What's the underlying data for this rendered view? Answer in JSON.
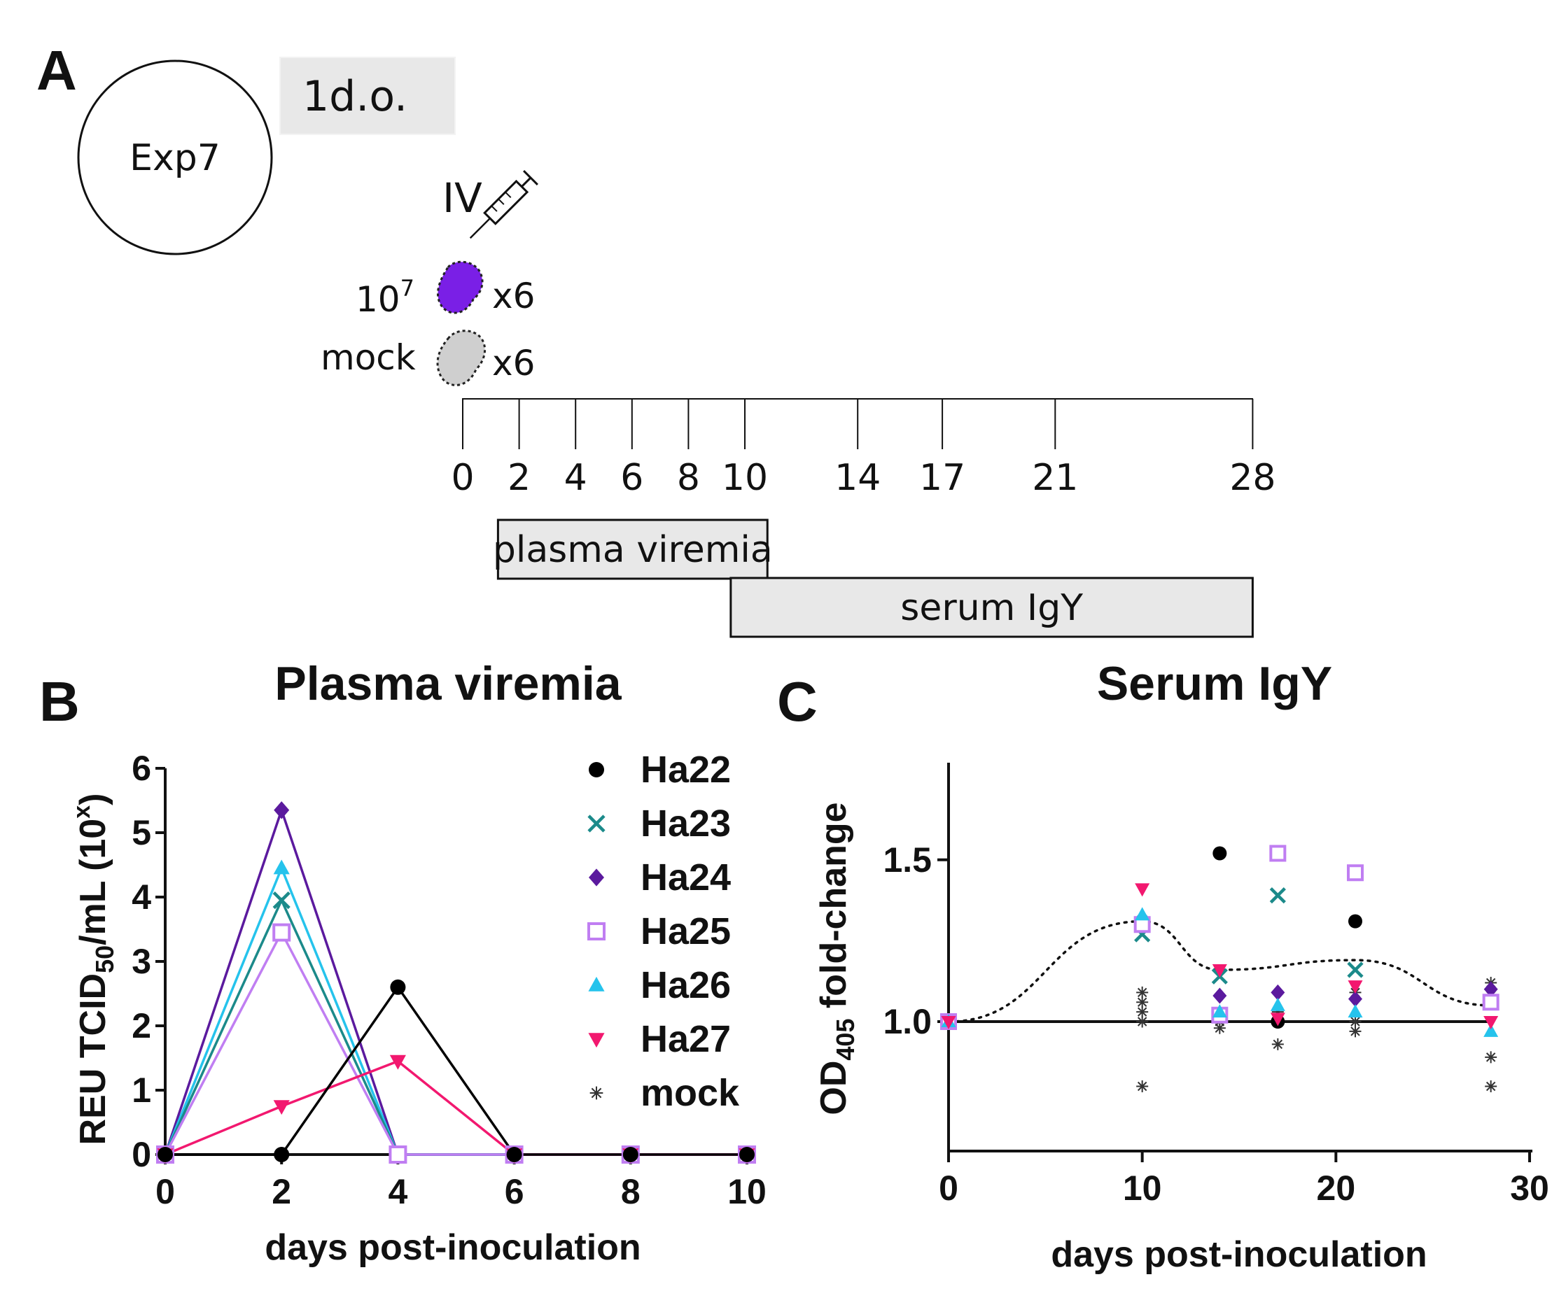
{
  "panel_a": {
    "letter": "A",
    "experiment": "Exp7",
    "age_label": "1d.o.",
    "route": "IV",
    "dose_label": "10",
    "dose_exponent": "7",
    "dose_count": "x6",
    "mock_label": "mock",
    "mock_count": "x6",
    "timeline_days": [
      "0",
      "2",
      "4",
      "6",
      "8",
      "10",
      "14",
      "17",
      "21",
      "28"
    ],
    "bars": [
      {
        "label": "plasma viremia",
        "from": 1.25,
        "to": 10.8
      },
      {
        "label": "serum IgY",
        "from": 9.5,
        "to": 28
      }
    ],
    "colors": {
      "infected": "#7a1fe6",
      "mock": "#cfcfcf",
      "bar_fill": "#e8e8e8"
    }
  },
  "chart_data": [
    {
      "panel": "B",
      "type": "line",
      "title": "Plasma viremia",
      "xlabel": "days post-inoculation",
      "ylabel_main": "REU  TCID",
      "ylabel_sub": "50",
      "ylabel_rest": "/mL (10",
      "ylabel_sup": "x",
      "ylabel_end": ")",
      "xlim": [
        0,
        10
      ],
      "ylim": [
        0,
        6
      ],
      "xticks": [
        "0",
        "2",
        "4",
        "6",
        "8",
        "10"
      ],
      "yticks": [
        "0",
        "1",
        "2",
        "3",
        "4",
        "5",
        "6"
      ],
      "x": [
        0,
        2,
        4,
        6,
        8,
        10
      ],
      "series": [
        {
          "name": "Ha22",
          "marker": "circle",
          "color": "#000000",
          "values": [
            0,
            0,
            2.6,
            0,
            0,
            0
          ]
        },
        {
          "name": "Ha23",
          "marker": "x",
          "color": "#1b8a8a",
          "values": [
            0,
            3.95,
            0,
            0,
            0,
            0
          ]
        },
        {
          "name": "Ha24",
          "marker": "diamond",
          "color": "#5b1a9e",
          "values": [
            0,
            5.35,
            0,
            0,
            0,
            0
          ]
        },
        {
          "name": "Ha25",
          "marker": "square-open",
          "color": "#c07ef2",
          "values": [
            0,
            3.45,
            0,
            0,
            0,
            0
          ]
        },
        {
          "name": "Ha26",
          "marker": "triangle-up",
          "color": "#25c3ec",
          "values": [
            0,
            4.45,
            0,
            0,
            0,
            0
          ]
        },
        {
          "name": "Ha27",
          "marker": "triangle-down",
          "color": "#f2186f",
          "values": [
            0,
            0.75,
            1.45,
            0,
            0,
            0
          ]
        },
        {
          "name": "mock",
          "marker": "asterisk",
          "color": "#333333",
          "values": [
            0,
            0,
            0,
            0,
            0,
            0
          ]
        }
      ],
      "legend": "right"
    },
    {
      "panel": "C",
      "type": "scatter",
      "title": "Serum IgY",
      "xlabel": "days post-inoculation",
      "ylabel_main": "OD",
      "ylabel_sub": "405",
      "ylabel_rest": " fold-change",
      "xlim": [
        0,
        30
      ],
      "ylim": [
        0.6,
        1.8
      ],
      "xticks": [
        "0",
        "10",
        "20",
        "30"
      ],
      "yticks": [
        "1.0",
        "1.5"
      ],
      "baseline": 1.0,
      "mean_line": {
        "x": [
          0,
          10,
          14,
          21,
          28
        ],
        "y": [
          1.0,
          1.31,
          1.16,
          1.19,
          1.05
        ]
      },
      "x": [
        0,
        10,
        14,
        17,
        21,
        28
      ],
      "series": [
        {
          "name": "Ha22",
          "marker": "circle",
          "color": "#000000",
          "values": [
            1.0,
            null,
            1.52,
            1.0,
            1.31,
            1.06
          ]
        },
        {
          "name": "Ha23",
          "marker": "x",
          "color": "#1b8a8a",
          "values": [
            1.0,
            1.27,
            1.14,
            1.39,
            1.16,
            1.06
          ]
        },
        {
          "name": "Ha24",
          "marker": "diamond",
          "color": "#5b1a9e",
          "values": [
            1.0,
            1.32,
            1.08,
            1.09,
            1.07,
            1.1
          ]
        },
        {
          "name": "Ha25",
          "marker": "square-open",
          "color": "#c07ef2",
          "values": [
            1.0,
            1.3,
            1.02,
            1.52,
            1.46,
            1.06
          ]
        },
        {
          "name": "Ha26",
          "marker": "triangle-up",
          "color": "#25c3ec",
          "values": [
            1.0,
            1.33,
            1.03,
            1.05,
            1.03,
            0.97
          ]
        },
        {
          "name": "Ha27",
          "marker": "triangle-down",
          "color": "#f2186f",
          "values": [
            1.0,
            1.41,
            1.16,
            1.01,
            1.11,
            1.0
          ]
        }
      ],
      "mock": {
        "name": "mock",
        "marker": "asterisk",
        "color": "#333333",
        "points": [
          [
            10,
            1.09
          ],
          [
            10,
            1.06
          ],
          [
            10,
            1.03
          ],
          [
            10,
            1.0
          ],
          [
            10,
            0.8
          ],
          [
            14,
            1.02
          ],
          [
            14,
            1.0
          ],
          [
            14,
            0.98
          ],
          [
            17,
            1.03
          ],
          [
            17,
            0.93
          ],
          [
            21,
            1.09
          ],
          [
            21,
            1.0
          ],
          [
            21,
            0.97
          ],
          [
            28,
            1.12
          ],
          [
            28,
            1.08
          ],
          [
            28,
            0.89
          ],
          [
            28,
            0.8
          ]
        ]
      }
    }
  ]
}
